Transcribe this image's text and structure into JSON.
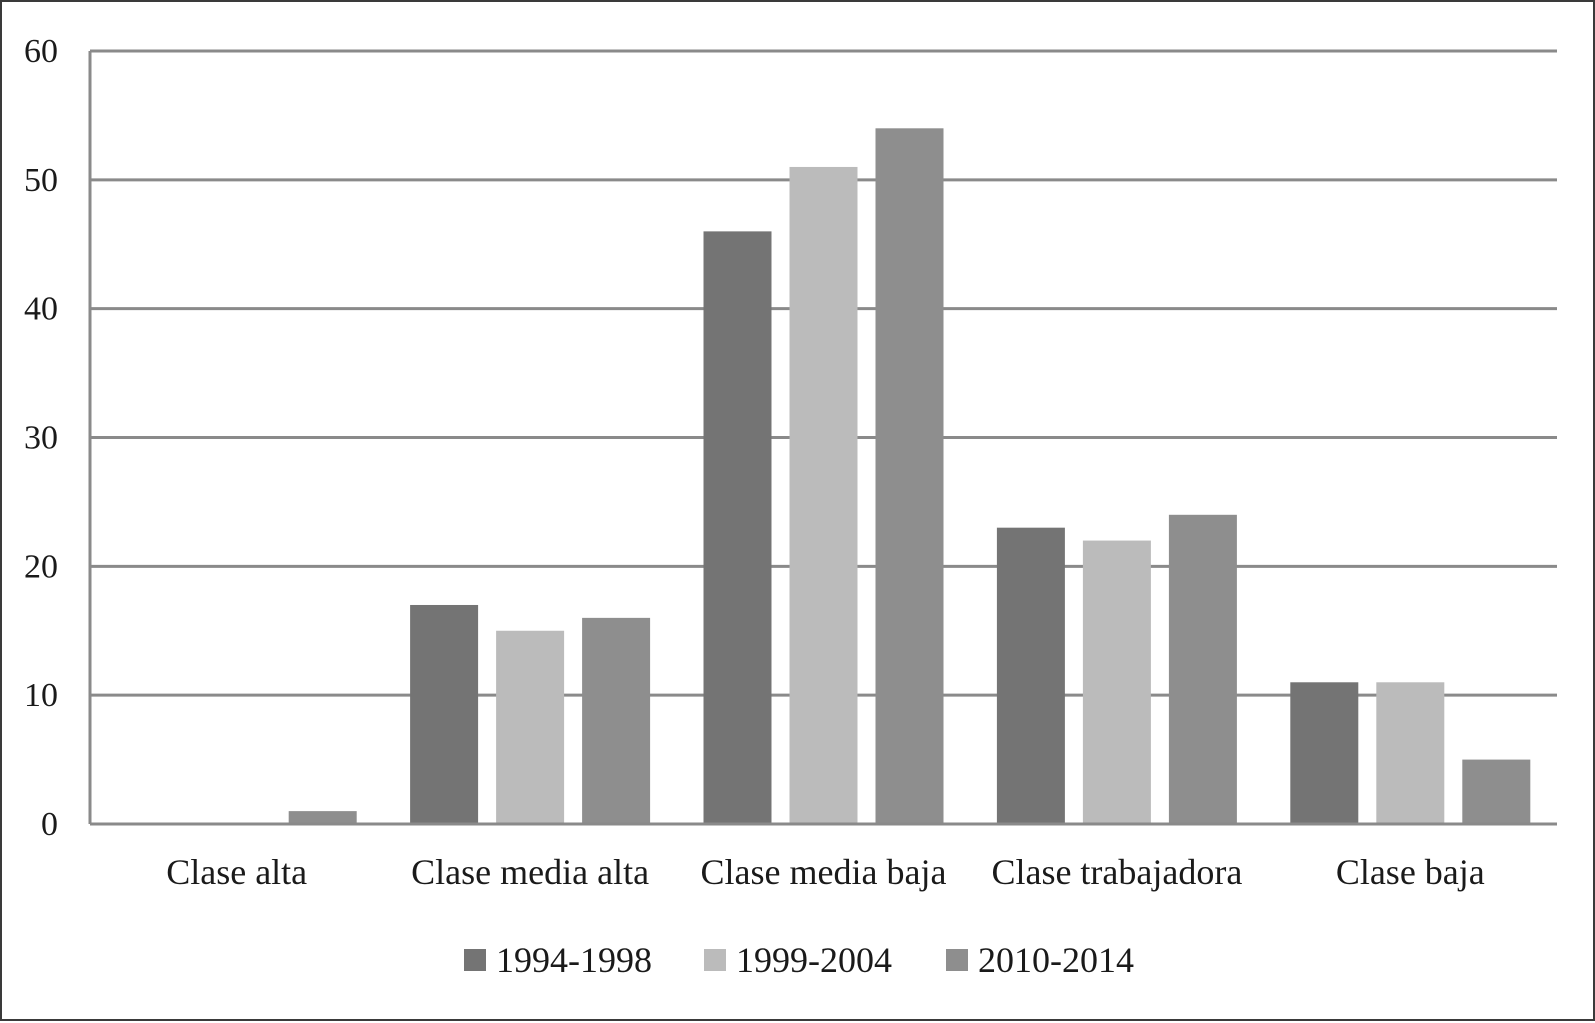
{
  "chart_data": {
    "type": "bar",
    "title": "",
    "xlabel": "",
    "ylabel": "",
    "categories": [
      "Clase alta",
      "Clase media alta",
      "Clase media baja",
      "Clase trabajadora",
      "Clase baja"
    ],
    "series": [
      {
        "name": "1994-1998",
        "values": [
          0,
          17,
          46,
          23,
          11
        ],
        "color": "#747474"
      },
      {
        "name": "1999-2004",
        "values": [
          0,
          15,
          51,
          22,
          11
        ],
        "color": "#bbbbbb"
      },
      {
        "name": "2010-2014",
        "values": [
          1,
          16,
          54,
          24,
          5
        ],
        "color": "#8e8e8e"
      }
    ],
    "ylim": [
      0,
      60
    ],
    "yticks": [
      "0",
      "10",
      "20",
      "30",
      "40",
      "50",
      "60"
    ],
    "grid": true,
    "legend_position": "bottom-center",
    "colors": {
      "gridline": "#8a8a8a",
      "axis": "#8a8a8a",
      "border": "#3a3a3a"
    }
  }
}
